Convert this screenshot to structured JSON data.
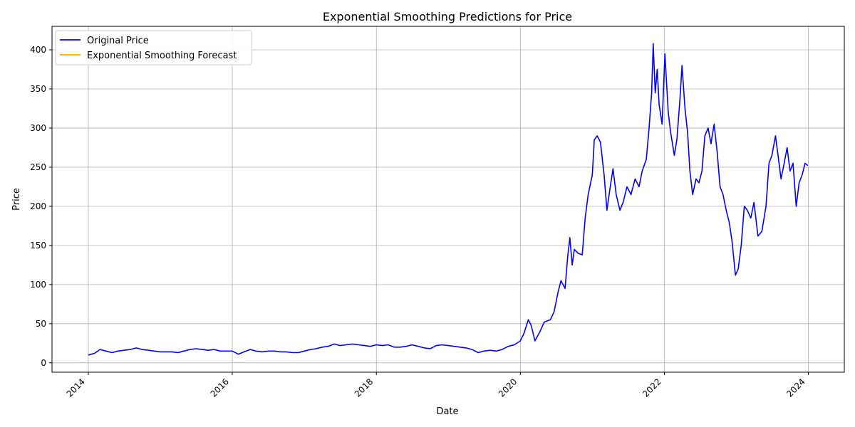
{
  "chart_data": {
    "type": "line",
    "title": "Exponential Smoothing Predictions for Price",
    "xlabel": "Date",
    "ylabel": "Price",
    "xlim": [
      "2013-07-01",
      "2024-07-01"
    ],
    "ylim": [
      -12,
      430
    ],
    "x_ticks": [
      "2014",
      "2016",
      "2018",
      "2020",
      "2022",
      "2024"
    ],
    "y_ticks": [
      0,
      50,
      100,
      150,
      200,
      250,
      300,
      350,
      400
    ],
    "grid": true,
    "legend_position": "top-left",
    "series": [
      {
        "name": "Original Price",
        "color": "#0000ff",
        "points": [
          [
            "2014-01-01",
            10
          ],
          [
            "2014-02-01",
            12
          ],
          [
            "2014-03-01",
            17
          ],
          [
            "2014-04-01",
            15
          ],
          [
            "2014-05-01",
            13
          ],
          [
            "2014-06-01",
            15
          ],
          [
            "2014-07-01",
            16
          ],
          [
            "2014-08-01",
            17
          ],
          [
            "2014-09-01",
            19
          ],
          [
            "2014-10-01",
            17
          ],
          [
            "2014-11-01",
            16
          ],
          [
            "2014-12-01",
            15
          ],
          [
            "2015-01-01",
            14
          ],
          [
            "2015-02-01",
            14
          ],
          [
            "2015-03-01",
            14
          ],
          [
            "2015-04-01",
            13
          ],
          [
            "2015-05-01",
            15
          ],
          [
            "2015-06-01",
            17
          ],
          [
            "2015-07-01",
            18
          ],
          [
            "2015-08-01",
            17
          ],
          [
            "2015-09-01",
            16
          ],
          [
            "2015-10-01",
            17
          ],
          [
            "2015-11-01",
            15
          ],
          [
            "2015-12-01",
            15
          ],
          [
            "2016-01-01",
            15
          ],
          [
            "2016-02-01",
            11
          ],
          [
            "2016-03-01",
            14
          ],
          [
            "2016-04-01",
            17
          ],
          [
            "2016-05-01",
            15
          ],
          [
            "2016-06-01",
            14
          ],
          [
            "2016-07-01",
            15
          ],
          [
            "2016-08-01",
            15
          ],
          [
            "2016-09-01",
            14
          ],
          [
            "2016-10-01",
            14
          ],
          [
            "2016-11-01",
            13
          ],
          [
            "2016-12-01",
            13
          ],
          [
            "2017-01-01",
            15
          ],
          [
            "2017-02-01",
            17
          ],
          [
            "2017-03-01",
            18
          ],
          [
            "2017-04-01",
            20
          ],
          [
            "2017-05-01",
            21
          ],
          [
            "2017-06-01",
            24
          ],
          [
            "2017-07-01",
            22
          ],
          [
            "2017-08-01",
            23
          ],
          [
            "2017-09-01",
            24
          ],
          [
            "2017-10-01",
            23
          ],
          [
            "2017-11-01",
            22
          ],
          [
            "2017-12-01",
            21
          ],
          [
            "2018-01-01",
            23
          ],
          [
            "2018-02-01",
            22
          ],
          [
            "2018-03-01",
            23
          ],
          [
            "2018-04-01",
            20
          ],
          [
            "2018-05-01",
            20
          ],
          [
            "2018-06-01",
            21
          ],
          [
            "2018-07-01",
            23
          ],
          [
            "2018-08-01",
            21
          ],
          [
            "2018-09-01",
            19
          ],
          [
            "2018-10-01",
            18
          ],
          [
            "2018-11-01",
            22
          ],
          [
            "2018-12-01",
            23
          ],
          [
            "2019-01-01",
            22
          ],
          [
            "2019-02-01",
            21
          ],
          [
            "2019-03-01",
            20
          ],
          [
            "2019-04-01",
            19
          ],
          [
            "2019-05-01",
            17
          ],
          [
            "2019-06-01",
            13
          ],
          [
            "2019-07-01",
            15
          ],
          [
            "2019-08-01",
            16
          ],
          [
            "2019-09-01",
            15
          ],
          [
            "2019-10-01",
            17
          ],
          [
            "2019-11-01",
            21
          ],
          [
            "2019-12-01",
            23
          ],
          [
            "2020-01-01",
            28
          ],
          [
            "2020-01-20",
            38
          ],
          [
            "2020-02-10",
            55
          ],
          [
            "2020-02-25",
            48
          ],
          [
            "2020-03-15",
            28
          ],
          [
            "2020-04-10",
            40
          ],
          [
            "2020-05-01",
            52
          ],
          [
            "2020-06-01",
            55
          ],
          [
            "2020-06-20",
            65
          ],
          [
            "2020-07-10",
            90
          ],
          [
            "2020-07-25",
            105
          ],
          [
            "2020-08-15",
            95
          ],
          [
            "2020-08-28",
            135
          ],
          [
            "2020-09-08",
            160
          ],
          [
            "2020-09-20",
            125
          ],
          [
            "2020-10-01",
            145
          ],
          [
            "2020-10-20",
            140
          ],
          [
            "2020-11-10",
            138
          ],
          [
            "2020-11-25",
            185
          ],
          [
            "2020-12-10",
            215
          ],
          [
            "2020-12-31",
            240
          ],
          [
            "2021-01-10",
            285
          ],
          [
            "2021-01-25",
            290
          ],
          [
            "2021-02-10",
            282
          ],
          [
            "2021-03-01",
            240
          ],
          [
            "2021-03-15",
            195
          ],
          [
            "2021-04-01",
            225
          ],
          [
            "2021-04-15",
            248
          ],
          [
            "2021-05-01",
            215
          ],
          [
            "2021-05-20",
            195
          ],
          [
            "2021-06-05",
            205
          ],
          [
            "2021-06-25",
            225
          ],
          [
            "2021-07-15",
            215
          ],
          [
            "2021-08-05",
            235
          ],
          [
            "2021-08-25",
            225
          ],
          [
            "2021-09-10",
            245
          ],
          [
            "2021-10-01",
            260
          ],
          [
            "2021-10-15",
            300
          ],
          [
            "2021-10-28",
            345
          ],
          [
            "2021-11-05",
            408
          ],
          [
            "2021-11-15",
            345
          ],
          [
            "2021-11-25",
            375
          ],
          [
            "2021-12-05",
            330
          ],
          [
            "2021-12-20",
            305
          ],
          [
            "2022-01-03",
            395
          ],
          [
            "2022-01-20",
            320
          ],
          [
            "2022-02-01",
            295
          ],
          [
            "2022-02-20",
            265
          ],
          [
            "2022-03-05",
            285
          ],
          [
            "2022-03-20",
            335
          ],
          [
            "2022-03-31",
            380
          ],
          [
            "2022-04-15",
            325
          ],
          [
            "2022-04-28",
            295
          ],
          [
            "2022-05-10",
            245
          ],
          [
            "2022-05-24",
            215
          ],
          [
            "2022-06-10",
            235
          ],
          [
            "2022-06-25",
            230
          ],
          [
            "2022-07-10",
            245
          ],
          [
            "2022-07-25",
            290
          ],
          [
            "2022-08-10",
            300
          ],
          [
            "2022-08-25",
            280
          ],
          [
            "2022-09-10",
            305
          ],
          [
            "2022-09-25",
            270
          ],
          [
            "2022-10-10",
            225
          ],
          [
            "2022-10-25",
            215
          ],
          [
            "2022-11-10",
            195
          ],
          [
            "2022-11-25",
            180
          ],
          [
            "2022-12-10",
            155
          ],
          [
            "2022-12-27",
            112
          ],
          [
            "2023-01-10",
            120
          ],
          [
            "2023-01-25",
            150
          ],
          [
            "2023-02-10",
            200
          ],
          [
            "2023-02-25",
            195
          ],
          [
            "2023-03-15",
            185
          ],
          [
            "2023-03-31",
            205
          ],
          [
            "2023-04-20",
            162
          ],
          [
            "2023-05-10",
            168
          ],
          [
            "2023-05-31",
            200
          ],
          [
            "2023-06-15",
            255
          ],
          [
            "2023-06-30",
            265
          ],
          [
            "2023-07-18",
            290
          ],
          [
            "2023-07-31",
            265
          ],
          [
            "2023-08-15",
            235
          ],
          [
            "2023-08-31",
            255
          ],
          [
            "2023-09-15",
            275
          ],
          [
            "2023-09-30",
            245
          ],
          [
            "2023-10-15",
            255
          ],
          [
            "2023-10-31",
            200
          ],
          [
            "2023-11-15",
            230
          ],
          [
            "2023-11-30",
            240
          ],
          [
            "2023-12-15",
            255
          ],
          [
            "2023-12-29",
            252
          ]
        ]
      },
      {
        "name": "Exponential Smoothing Forecast",
        "color": "#ffa500",
        "points": []
      }
    ]
  }
}
